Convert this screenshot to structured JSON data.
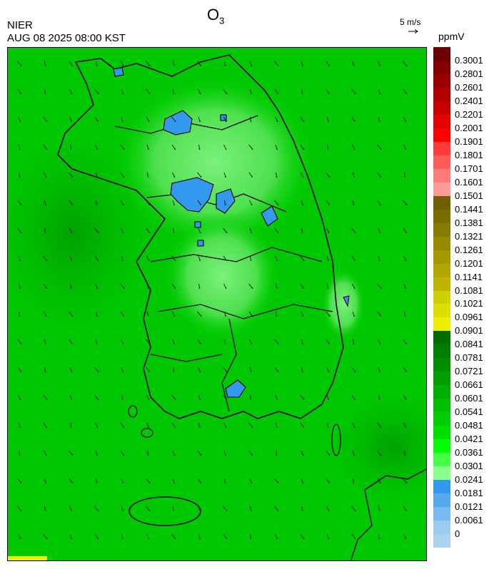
{
  "header": {
    "title_main": "O",
    "title_sub": "3",
    "agency": "NIER",
    "datetime": "AUG 08 2025 08:00 KST",
    "vector_scale_label": "5 m/s",
    "unit": "ppmV"
  },
  "map": {
    "background_color": "#00c800",
    "low_ozone_color": "#3399ee",
    "coast_line_color": "#000000",
    "wind_arrow_color": "#000000"
  },
  "legend": {
    "labels": [
      "0.3001",
      "0.2801",
      "0.2601",
      "0.2401",
      "0.2201",
      "0.2001",
      "0.1901",
      "0.1801",
      "0.1701",
      "0.1601",
      "0.1501",
      "0.1441",
      "0.1381",
      "0.1321",
      "0.1261",
      "0.1201",
      "0.1141",
      "0.1081",
      "0.1021",
      "0.0961",
      "0.0901",
      "0.0841",
      "0.0781",
      "0.0721",
      "0.0661",
      "0.0601",
      "0.0541",
      "0.0481",
      "0.0421",
      "0.0361",
      "0.0301",
      "0.0241",
      "0.0181",
      "0.0121",
      "0.0061",
      "0"
    ],
    "colors": [
      "#6e0000",
      "#820000",
      "#9a0000",
      "#b00000",
      "#c80000",
      "#e60000",
      "#ff0000",
      "#ff3a3a",
      "#ff5a5a",
      "#ff7a7a",
      "#ff9a9a",
      "#6e6000",
      "#7a6e00",
      "#887c00",
      "#968a00",
      "#a49800",
      "#b2a600",
      "#c0b400",
      "#ced000",
      "#dede00",
      "#eeee00",
      "#006e00",
      "#007e00",
      "#008e00",
      "#009e00",
      "#00ae00",
      "#00be00",
      "#00ce00",
      "#00e000",
      "#00ff00",
      "#44ff44",
      "#88ff88",
      "#3399ee",
      "#55aaee",
      "#77bbee",
      "#99ccee",
      "#aad4ee"
    ]
  }
}
